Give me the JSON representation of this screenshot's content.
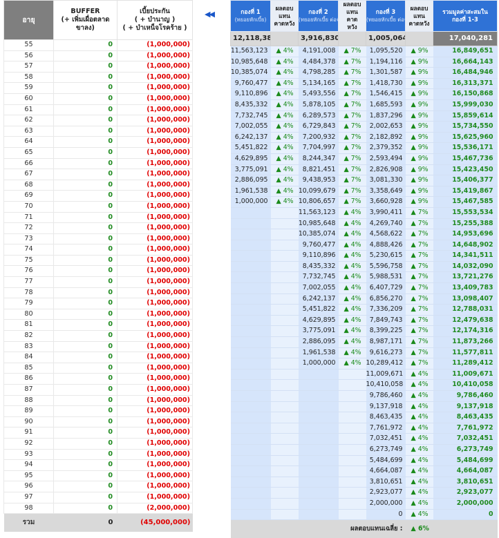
{
  "left": {
    "headers": {
      "age": "อายุ",
      "buffer_line1": "BUFFER",
      "buffer_line2": "(+ เพิ่มเผื่อตลาด",
      "buffer_line3": "ขาลง)",
      "premium_line1": "เบี้ยประกัน",
      "premium_line2": "( + บำนาญ )",
      "premium_line3": "( + บำเหน็จโรคร้าย )"
    },
    "rows": [
      {
        "age": "55",
        "buffer": "0",
        "premium": "(1,000,000)"
      },
      {
        "age": "56",
        "buffer": "0",
        "premium": "(1,000,000)"
      },
      {
        "age": "57",
        "buffer": "0",
        "premium": "(1,000,000)"
      },
      {
        "age": "58",
        "buffer": "0",
        "premium": "(1,000,000)"
      },
      {
        "age": "59",
        "buffer": "0",
        "premium": "(1,000,000)"
      },
      {
        "age": "60",
        "buffer": "0",
        "premium": "(1,000,000)"
      },
      {
        "age": "61",
        "buffer": "0",
        "premium": "(1,000,000)"
      },
      {
        "age": "62",
        "buffer": "0",
        "premium": "(1,000,000)"
      },
      {
        "age": "63",
        "buffer": "0",
        "premium": "(1,000,000)"
      },
      {
        "age": "64",
        "buffer": "0",
        "premium": "(1,000,000)"
      },
      {
        "age": "65",
        "buffer": "0",
        "premium": "(1,000,000)"
      },
      {
        "age": "66",
        "buffer": "0",
        "premium": "(1,000,000)"
      },
      {
        "age": "67",
        "buffer": "0",
        "premium": "(1,000,000)"
      },
      {
        "age": "68",
        "buffer": "0",
        "premium": "(1,000,000)"
      },
      {
        "age": "69",
        "buffer": "0",
        "premium": "(1,000,000)"
      },
      {
        "age": "70",
        "buffer": "0",
        "premium": "(1,000,000)"
      },
      {
        "age": "71",
        "buffer": "0",
        "premium": "(1,000,000)"
      },
      {
        "age": "72",
        "buffer": "0",
        "premium": "(1,000,000)"
      },
      {
        "age": "73",
        "buffer": "0",
        "premium": "(1,000,000)"
      },
      {
        "age": "74",
        "buffer": "0",
        "premium": "(1,000,000)"
      },
      {
        "age": "75",
        "buffer": "0",
        "premium": "(1,000,000)"
      },
      {
        "age": "76",
        "buffer": "0",
        "premium": "(1,000,000)"
      },
      {
        "age": "77",
        "buffer": "0",
        "premium": "(1,000,000)"
      },
      {
        "age": "78",
        "buffer": "0",
        "premium": "(1,000,000)"
      },
      {
        "age": "79",
        "buffer": "0",
        "premium": "(1,000,000)"
      },
      {
        "age": "80",
        "buffer": "0",
        "premium": "(1,000,000)"
      },
      {
        "age": "81",
        "buffer": "0",
        "premium": "(1,000,000)"
      },
      {
        "age": "82",
        "buffer": "0",
        "premium": "(1,000,000)"
      },
      {
        "age": "83",
        "buffer": "0",
        "premium": "(1,000,000)"
      },
      {
        "age": "84",
        "buffer": "0",
        "premium": "(1,000,000)"
      },
      {
        "age": "85",
        "buffer": "0",
        "premium": "(1,000,000)"
      },
      {
        "age": "86",
        "buffer": "0",
        "premium": "(1,000,000)"
      },
      {
        "age": "87",
        "buffer": "0",
        "premium": "(1,000,000)"
      },
      {
        "age": "88",
        "buffer": "0",
        "premium": "(1,000,000)"
      },
      {
        "age": "89",
        "buffer": "0",
        "premium": "(1,000,000)"
      },
      {
        "age": "90",
        "buffer": "0",
        "premium": "(1,000,000)"
      },
      {
        "age": "91",
        "buffer": "0",
        "premium": "(1,000,000)"
      },
      {
        "age": "92",
        "buffer": "0",
        "premium": "(1,000,000)"
      },
      {
        "age": "93",
        "buffer": "0",
        "premium": "(1,000,000)"
      },
      {
        "age": "94",
        "buffer": "0",
        "premium": "(1,000,000)"
      },
      {
        "age": "95",
        "buffer": "0",
        "premium": "(1,000,000)"
      },
      {
        "age": "96",
        "buffer": "0",
        "premium": "(1,000,000)"
      },
      {
        "age": "97",
        "buffer": "0",
        "premium": "(1,000,000)"
      },
      {
        "age": "98",
        "buffer": "0",
        "premium": "(2,000,000)"
      }
    ],
    "footer": {
      "label": "รวม",
      "buffer": "0",
      "premium": "(45,000,000)"
    }
  },
  "nav": {
    "collapse_label": "◀◀"
  },
  "right": {
    "headers": {
      "fund1": "กองที่ 1",
      "fund1_sub": "(ทยอยหักเบี้ย)",
      "fund2": "กองที่ 2",
      "fund2_sub": "(ทยอยหักเบี้ย ต่อจากกอง 1)",
      "fund3": "กองที่ 3",
      "fund3_sub": "(ทยอยหักเบี้ย ต่อจากกอง 2)",
      "ret1_l1": "ผลตอบ",
      "ret1_l2": "แทน",
      "ret1_l3": "คาดหวัง",
      "ret2_l1": "ผลตอบ",
      "ret2_l2": "แทน",
      "ret2_l3": "คาด",
      "ret2_l4": "หวัง",
      "ret3_l1": "ผลตอบ",
      "ret3_l2": "แทน",
      "ret3_l3": "คาดหวัง",
      "total_l1": "รวมมูลค่าสะสมใน",
      "total_l2": "กองที่ 1-3"
    },
    "initial": {
      "fund1": "12,118,387",
      "fund2": "3,916,830",
      "fund3": "1,005,064",
      "total": "17,040,281"
    },
    "rows": [
      {
        "f1": "11,563,123",
        "r1": "▲ 4%",
        "f2": "4,191,008",
        "r2": "▲ 7%",
        "f3": "1,095,520",
        "r3": "▲ 9%",
        "total": "16,849,651"
      },
      {
        "f1": "10,985,648",
        "r1": "▲ 4%",
        "f2": "4,484,378",
        "r2": "▲ 7%",
        "f3": "1,194,116",
        "r3": "▲ 9%",
        "total": "16,664,143"
      },
      {
        "f1": "10,385,074",
        "r1": "▲ 4%",
        "f2": "4,798,285",
        "r2": "▲ 7%",
        "f3": "1,301,587",
        "r3": "▲ 9%",
        "total": "16,484,946"
      },
      {
        "f1": "9,760,477",
        "r1": "▲ 4%",
        "f2": "5,134,165",
        "r2": "▲ 7%",
        "f3": "1,418,730",
        "r3": "▲ 9%",
        "total": "16,313,371"
      },
      {
        "f1": "9,110,896",
        "r1": "▲ 4%",
        "f2": "5,493,556",
        "r2": "▲ 7%",
        "f3": "1,546,415",
        "r3": "▲ 9%",
        "total": "16,150,868"
      },
      {
        "f1": "8,435,332",
        "r1": "▲ 4%",
        "f2": "5,878,105",
        "r2": "▲ 7%",
        "f3": "1,685,593",
        "r3": "▲ 9%",
        "total": "15,999,030"
      },
      {
        "f1": "7,732,745",
        "r1": "▲ 4%",
        "f2": "6,289,573",
        "r2": "▲ 7%",
        "f3": "1,837,296",
        "r3": "▲ 9%",
        "total": "15,859,614"
      },
      {
        "f1": "7,002,055",
        "r1": "▲ 4%",
        "f2": "6,729,843",
        "r2": "▲ 7%",
        "f3": "2,002,653",
        "r3": "▲ 9%",
        "total": "15,734,550"
      },
      {
        "f1": "6,242,137",
        "r1": "▲ 4%",
        "f2": "7,200,932",
        "r2": "▲ 7%",
        "f3": "2,182,892",
        "r3": "▲ 9%",
        "total": "15,625,960"
      },
      {
        "f1": "5,451,822",
        "r1": "▲ 4%",
        "f2": "7,704,997",
        "r2": "▲ 7%",
        "f3": "2,379,352",
        "r3": "▲ 9%",
        "total": "15,536,171"
      },
      {
        "f1": "4,629,895",
        "r1": "▲ 4%",
        "f2": "8,244,347",
        "r2": "▲ 7%",
        "f3": "2,593,494",
        "r3": "▲ 9%",
        "total": "15,467,736"
      },
      {
        "f1": "3,775,091",
        "r1": "▲ 4%",
        "f2": "8,821,451",
        "r2": "▲ 7%",
        "f3": "2,826,908",
        "r3": "▲ 9%",
        "total": "15,423,450"
      },
      {
        "f1": "2,886,095",
        "r1": "▲ 4%",
        "f2": "9,438,953",
        "r2": "▲ 7%",
        "f3": "3,081,330",
        "r3": "▲ 9%",
        "total": "15,406,377"
      },
      {
        "f1": "1,961,538",
        "r1": "▲ 4%",
        "f2": "10,099,679",
        "r2": "▲ 7%",
        "f3": "3,358,649",
        "r3": "▲ 9%",
        "total": "15,419,867"
      },
      {
        "f1": "1,000,000",
        "r1": "▲ 4%",
        "f2": "10,806,657",
        "r2": "▲ 7%",
        "f3": "3,660,928",
        "r3": "▲ 9%",
        "total": "15,467,585"
      },
      {
        "f1": "",
        "r1": "",
        "f2": "11,563,123",
        "r2": "▲ 4%",
        "f3": "3,990,411",
        "r3": "▲ 7%",
        "total": "15,553,534"
      },
      {
        "f1": "",
        "r1": "",
        "f2": "10,985,648",
        "r2": "▲ 4%",
        "f3": "4,269,740",
        "r3": "▲ 7%",
        "total": "15,255,388"
      },
      {
        "f1": "",
        "r1": "",
        "f2": "10,385,074",
        "r2": "▲ 4%",
        "f3": "4,568,622",
        "r3": "▲ 7%",
        "total": "14,953,696"
      },
      {
        "f1": "",
        "r1": "",
        "f2": "9,760,477",
        "r2": "▲ 4%",
        "f3": "4,888,426",
        "r3": "▲ 7%",
        "total": "14,648,902"
      },
      {
        "f1": "",
        "r1": "",
        "f2": "9,110,896",
        "r2": "▲ 4%",
        "f3": "5,230,615",
        "r3": "▲ 7%",
        "total": "14,341,511"
      },
      {
        "f1": "",
        "r1": "",
        "f2": "8,435,332",
        "r2": "▲ 4%",
        "f3": "5,596,758",
        "r3": "▲ 7%",
        "total": "14,032,090"
      },
      {
        "f1": "",
        "r1": "",
        "f2": "7,732,745",
        "r2": "▲ 4%",
        "f3": "5,988,531",
        "r3": "▲ 7%",
        "total": "13,721,276"
      },
      {
        "f1": "",
        "r1": "",
        "f2": "7,002,055",
        "r2": "▲ 4%",
        "f3": "6,407,729",
        "r3": "▲ 7%",
        "total": "13,409,783"
      },
      {
        "f1": "",
        "r1": "",
        "f2": "6,242,137",
        "r2": "▲ 4%",
        "f3": "6,856,270",
        "r3": "▲ 7%",
        "total": "13,098,407"
      },
      {
        "f1": "",
        "r1": "",
        "f2": "5,451,822",
        "r2": "▲ 4%",
        "f3": "7,336,209",
        "r3": "▲ 7%",
        "total": "12,788,031"
      },
      {
        "f1": "",
        "r1": "",
        "f2": "4,629,895",
        "r2": "▲ 4%",
        "f3": "7,849,743",
        "r3": "▲ 7%",
        "total": "12,479,638"
      },
      {
        "f1": "",
        "r1": "",
        "f2": "3,775,091",
        "r2": "▲ 4%",
        "f3": "8,399,225",
        "r3": "▲ 7%",
        "total": "12,174,316"
      },
      {
        "f1": "",
        "r1": "",
        "f2": "2,886,095",
        "r2": "▲ 4%",
        "f3": "8,987,171",
        "r3": "▲ 7%",
        "total": "11,873,266"
      },
      {
        "f1": "",
        "r1": "",
        "f2": "1,961,538",
        "r2": "▲ 4%",
        "f3": "9,616,273",
        "r3": "▲ 7%",
        "total": "11,577,811"
      },
      {
        "f1": "",
        "r1": "",
        "f2": "1,000,000",
        "r2": "▲ 4%",
        "f3": "10,289,412",
        "r3": "▲ 7%",
        "total": "11,289,412"
      },
      {
        "f1": "",
        "r1": "",
        "f2": "",
        "r2": "",
        "f3": "11,009,671",
        "r3": "▲ 4%",
        "total": "11,009,671"
      },
      {
        "f1": "",
        "r1": "",
        "f2": "",
        "r2": "",
        "f3": "10,410,058",
        "r3": "▲ 4%",
        "total": "10,410,058"
      },
      {
        "f1": "",
        "r1": "",
        "f2": "",
        "r2": "",
        "f3": "9,786,460",
        "r3": "▲ 4%",
        "total": "9,786,460"
      },
      {
        "f1": "",
        "r1": "",
        "f2": "",
        "r2": "",
        "f3": "9,137,918",
        "r3": "▲ 4%",
        "total": "9,137,918"
      },
      {
        "f1": "",
        "r1": "",
        "f2": "",
        "r2": "",
        "f3": "8,463,435",
        "r3": "▲ 4%",
        "total": "8,463,435"
      },
      {
        "f1": "",
        "r1": "",
        "f2": "",
        "r2": "",
        "f3": "7,761,972",
        "r3": "▲ 4%",
        "total": "7,761,972"
      },
      {
        "f1": "",
        "r1": "",
        "f2": "",
        "r2": "",
        "f3": "7,032,451",
        "r3": "▲ 4%",
        "total": "7,032,451"
      },
      {
        "f1": "",
        "r1": "",
        "f2": "",
        "r2": "",
        "f3": "6,273,749",
        "r3": "▲ 4%",
        "total": "6,273,749"
      },
      {
        "f1": "",
        "r1": "",
        "f2": "",
        "r2": "",
        "f3": "5,484,699",
        "r3": "▲ 4%",
        "total": "5,484,699"
      },
      {
        "f1": "",
        "r1": "",
        "f2": "",
        "r2": "",
        "f3": "4,664,087",
        "r3": "▲ 4%",
        "total": "4,664,087"
      },
      {
        "f1": "",
        "r1": "",
        "f2": "",
        "r2": "",
        "f3": "3,810,651",
        "r3": "▲ 4%",
        "total": "3,810,651"
      },
      {
        "f1": "",
        "r1": "",
        "f2": "",
        "r2": "",
        "f3": "2,923,077",
        "r3": "▲ 4%",
        "total": "2,923,077"
      },
      {
        "f1": "",
        "r1": "",
        "f2": "",
        "r2": "",
        "f3": "2,000,000",
        "r3": "▲ 4%",
        "total": "2,000,000"
      },
      {
        "f1": "",
        "r1": "",
        "f2": "",
        "r2": "",
        "f3": "0",
        "r3": "▲ 4%",
        "total": "0"
      }
    ],
    "footer": {
      "avg_label": "ผลตอบแทนเฉลี่ย :",
      "avg_value": "▲ 6%"
    }
  },
  "colors": {
    "fund_header": "#2f72d6",
    "fund_col": "#d6e5fb",
    "return_col": "#e8f1fd",
    "positive": "#1f8a1f",
    "negative": "#e00000",
    "grey_header": "#7f7f7f",
    "footer_bg": "#d9d9d9"
  }
}
